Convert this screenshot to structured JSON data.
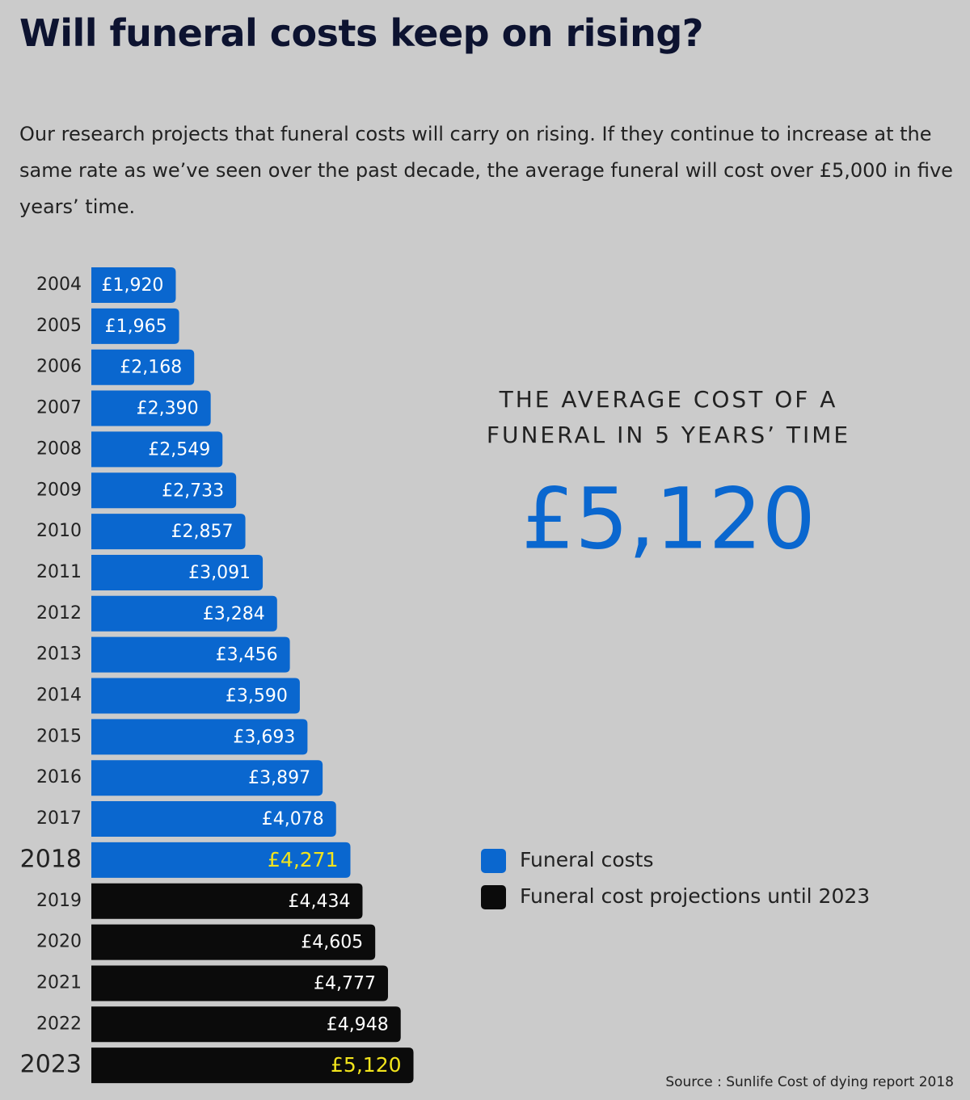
{
  "chart_data": {
    "type": "hbar",
    "title": "Will funeral costs keep on rising?",
    "subtitle": "Our research projects that funeral costs will carry on rising. If they continue to increase at the same rate as we’ve seen over the past decade, the average funeral will cost over £5,000 in five years’ time.",
    "categories": [
      "2004",
      "2005",
      "2006",
      "2007",
      "2008",
      "2009",
      "2010",
      "2011",
      "2012",
      "2013",
      "2014",
      "2015",
      "2016",
      "2017",
      "2018",
      "2019",
      "2020",
      "2021",
      "2022",
      "2023"
    ],
    "series": [
      {
        "name": "Funeral costs",
        "color": "#0a67cf",
        "values": [
          1920,
          1965,
          2168,
          2390,
          2549,
          2733,
          2857,
          3091,
          3284,
          3456,
          3590,
          3693,
          3897,
          4078,
          4271,
          null,
          null,
          null,
          null,
          null
        ],
        "value_labels": [
          "£1,920",
          "£1,965",
          "£2,168",
          "£2,390",
          "£2,549",
          "£2,733",
          "£2,857",
          "£3,091",
          "£3,284",
          "£3,456",
          "£3,590",
          "£3,693",
          "£3,897",
          "£4,078",
          "£4,271",
          null,
          null,
          null,
          null,
          null
        ]
      },
      {
        "name": "Funeral cost projections until 2023",
        "color": "#0b0b0b",
        "values": [
          null,
          null,
          null,
          null,
          null,
          null,
          null,
          null,
          null,
          null,
          null,
          null,
          null,
          null,
          null,
          4434,
          4605,
          4777,
          4948,
          5120
        ],
        "value_labels": [
          null,
          null,
          null,
          null,
          null,
          null,
          null,
          null,
          null,
          null,
          null,
          null,
          null,
          null,
          null,
          "£4,434",
          "£4,605",
          "£4,777",
          "£4,948",
          "£5,120"
        ]
      }
    ],
    "highlight_color": "#f2e41c",
    "callout": {
      "lines": [
        "THE AVERAGE COST OF A",
        "FUNERAL IN 5 YEARS’ TIME"
      ],
      "value": 5120,
      "value_label": "£5,120"
    },
    "source": "Source : Sunlife Cost of dying report 2018"
  }
}
